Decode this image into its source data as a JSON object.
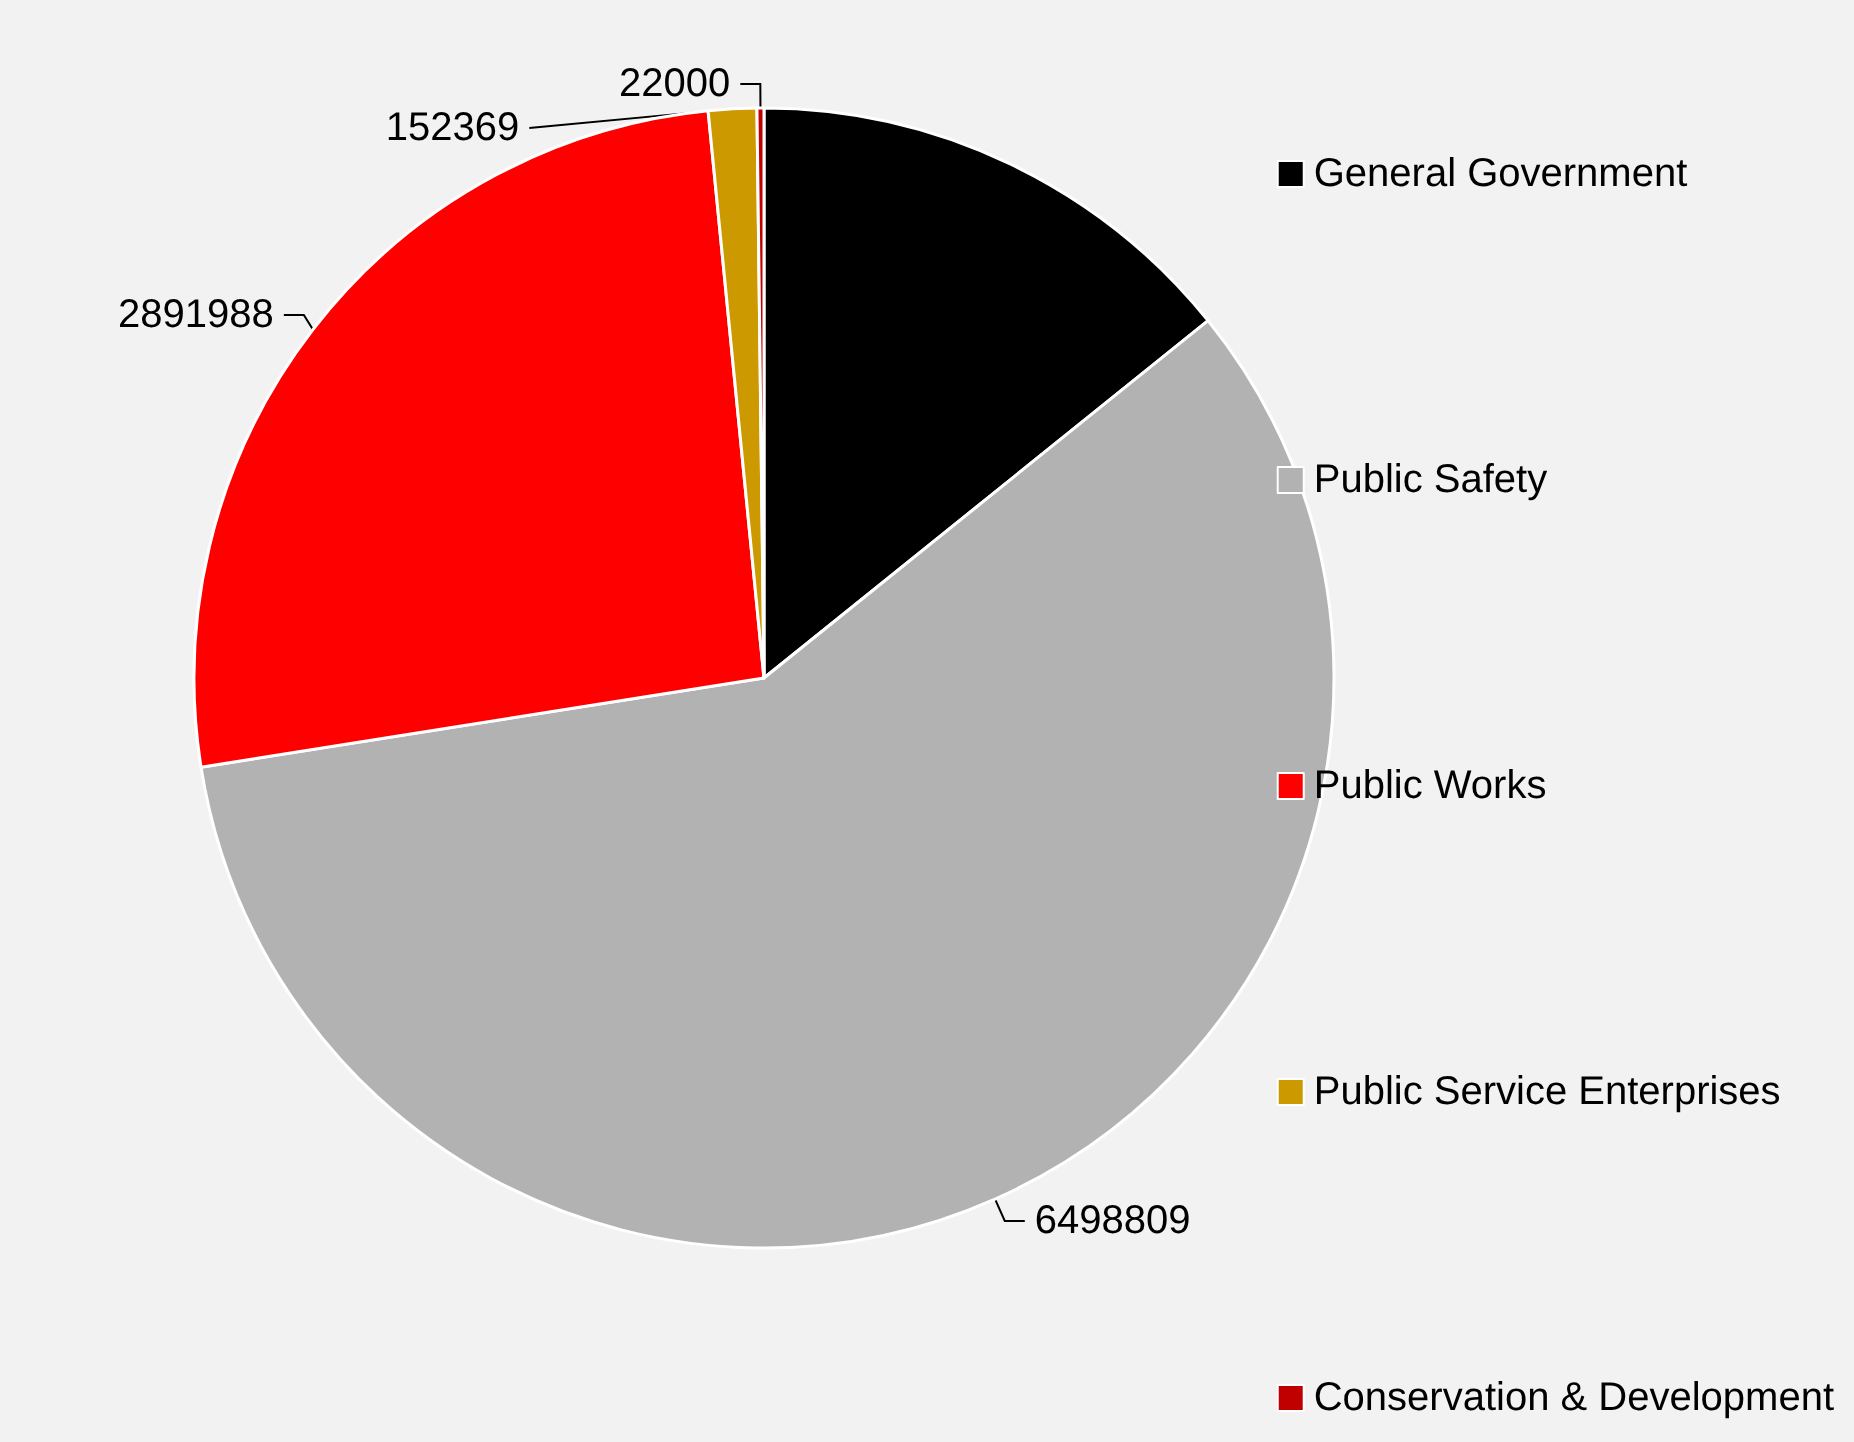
{
  "chart_data": {
    "type": "pie",
    "categories": [
      "General Government",
      "Public Safety",
      "Public Works",
      "Public Service Enterprises",
      "Conservation & Development"
    ],
    "values": [
      1585000,
      6498809,
      2891988,
      152369,
      22000
    ],
    "value_labels": [
      null,
      "6498809",
      "2891988",
      "152369",
      "22000"
    ],
    "colors": [
      "#000000",
      "#b2b2b2",
      "#ff0000",
      "#cc9900",
      "#c00000"
    ],
    "legend": "right"
  }
}
